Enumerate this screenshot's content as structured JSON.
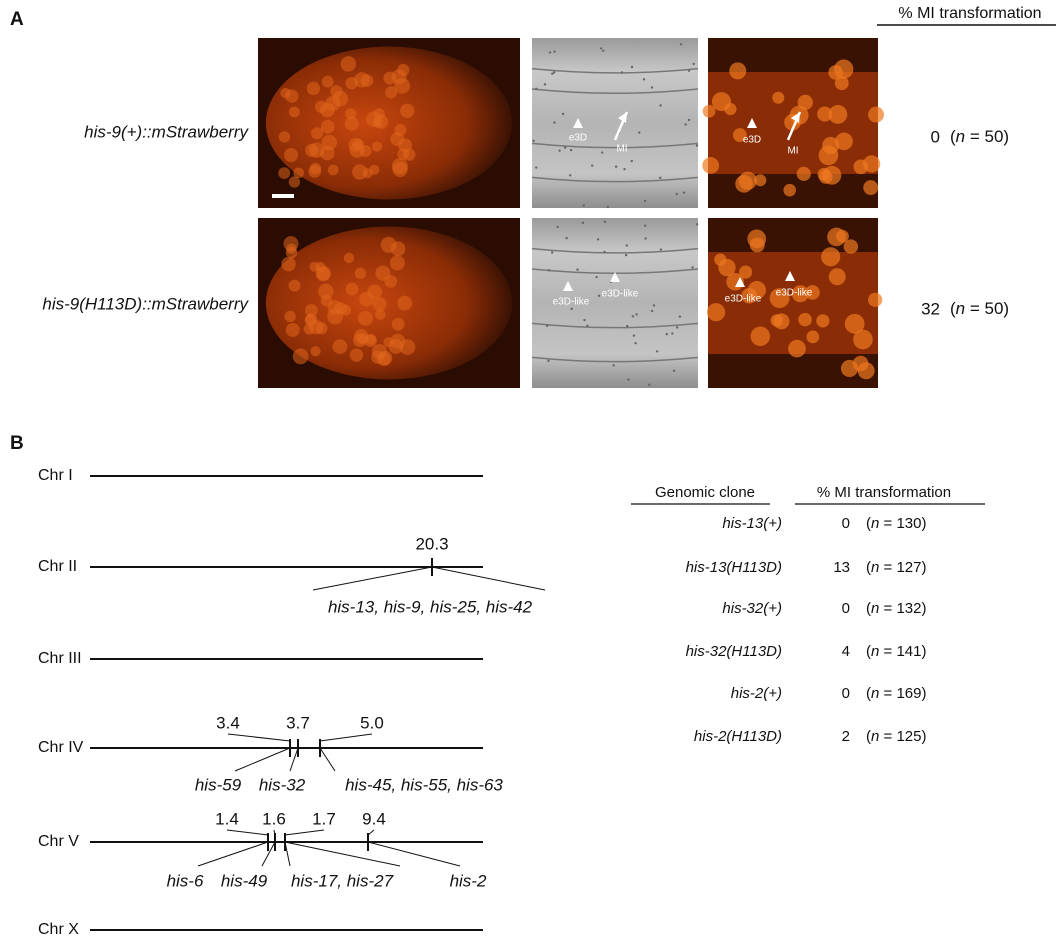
{
  "panel_a": {
    "label": "A",
    "column_header": "% MI transformation",
    "rows": [
      {
        "strain": "his-9(+)::mStrawberry",
        "dic_labels": [
          "e3D",
          "MI"
        ],
        "fluor_labels": [
          "e3D",
          "MI"
        ],
        "value": "0",
        "n_note": {
          "open": "(",
          "symbol": "n",
          "rest": " = 50)"
        }
      },
      {
        "strain": "his-9(H113D)::mStrawberry",
        "dic_labels": [
          "e3D-like",
          "e3D-like"
        ],
        "fluor_labels": [
          "e3D-like",
          "e3D-like"
        ],
        "value": "32",
        "n_note": {
          "open": "(",
          "symbol": "n",
          "rest": " = 50)"
        }
      }
    ]
  },
  "panel_b": {
    "label": "B",
    "chromosomes": [
      {
        "name": "Chr I",
        "loci": []
      },
      {
        "name": "Chr II",
        "loci": [
          {
            "position": "20.3",
            "genes": "his-13, his-9, his-25, his-42"
          }
        ]
      },
      {
        "name": "Chr III",
        "loci": []
      },
      {
        "name": "Chr IV",
        "loci": [
          {
            "position": "3.4",
            "genes": "his-59"
          },
          {
            "position": "3.7",
            "genes": "his-32"
          },
          {
            "position": "5.0",
            "genes": "his-45, his-55, his-63"
          }
        ]
      },
      {
        "name": "Chr V",
        "loci": [
          {
            "position": "1.4",
            "genes": "his-6"
          },
          {
            "position": "1.6",
            "genes": "his-49"
          },
          {
            "position": "1.7",
            "genes": "his-17, his-27"
          },
          {
            "position": "9.4",
            "genes": "his-2"
          }
        ]
      },
      {
        "name": "Chr X",
        "loci": []
      }
    ],
    "table": {
      "headers": [
        "Genomic clone",
        "% MI transformation"
      ],
      "rows": [
        {
          "clone": "his-13(+)",
          "value": "0",
          "n_note": {
            "open": "(",
            "symbol": "n",
            "rest": " = 130)"
          }
        },
        {
          "clone": "his-13(H113D)",
          "value": "13",
          "n_note": {
            "open": "(",
            "symbol": "n",
            "rest": " = 127)"
          }
        },
        {
          "clone": "his-32(+)",
          "value": "0",
          "n_note": {
            "open": "(",
            "symbol": "n",
            "rest": " = 132)"
          }
        },
        {
          "clone": "his-32(H113D)",
          "value": "4",
          "n_note": {
            "open": "(",
            "symbol": "n",
            "rest": " = 141)"
          }
        },
        {
          "clone": "his-2(+)",
          "value": "0",
          "n_note": {
            "open": "(",
            "symbol": "n",
            "rest": " = 169)"
          }
        },
        {
          "clone": "his-2(H113D)",
          "value": "2",
          "n_note": {
            "open": "(",
            "symbol": "n",
            "rest": " = 125)"
          }
        }
      ]
    }
  }
}
